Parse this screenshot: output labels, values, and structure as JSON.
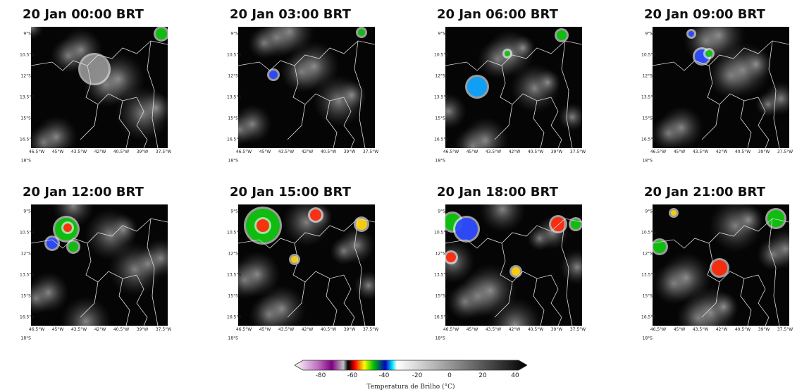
{
  "panels": [
    {
      "title": "20 Jan 00:00 BRT"
    },
    {
      "title": "20 Jan 03:00 BRT"
    },
    {
      "title": "20 Jan 06:00 BRT"
    },
    {
      "title": "20 Jan 09:00 BRT"
    },
    {
      "title": "20 Jan 12:00 BRT"
    },
    {
      "title": "20 Jan 15:00 BRT"
    },
    {
      "title": "20 Jan 18:00 BRT"
    },
    {
      "title": "20 Jan 21:00 BRT"
    }
  ],
  "lat_ticks": [
    "9°S",
    "10.5°S",
    "12°S",
    "13.5°S",
    "15°S",
    "16.5°S",
    "18°S"
  ],
  "lon_ticks": [
    "46.5°W",
    "45°W",
    "43.5°W",
    "42°W",
    "40.5°W",
    "39°W",
    "37.5°W"
  ],
  "colorbar": {
    "label": "Temperatura de Brilho (°C)",
    "ticks": [
      "-80",
      "-60",
      "-40",
      "-20",
      "0",
      "20",
      "40"
    ],
    "colors": [
      "#ffffff",
      "#c070c0",
      "#800080",
      "#000000",
      "#ff0000",
      "#ffff00",
      "#00c000",
      "#0000c0",
      "#00e0ff",
      "#ffffff",
      "#000000"
    ]
  }
}
